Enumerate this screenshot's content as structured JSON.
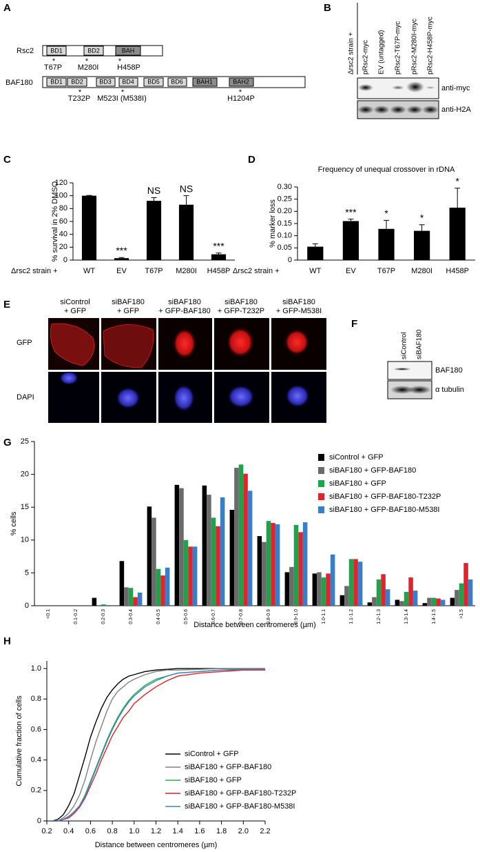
{
  "panel_labels": [
    "A",
    "B",
    "C",
    "D",
    "E",
    "F",
    "G",
    "H"
  ],
  "panel_a": {
    "marker": "*",
    "proteins": [
      {
        "name": "Rsc2",
        "domains": [
          "BD1",
          "BD2",
          "BAH"
        ],
        "mutations": [
          "T67P",
          "M280I",
          "H458P"
        ]
      },
      {
        "name": "BAF180",
        "domains": [
          "BD1",
          "BD2",
          "BD3",
          "BD4",
          "BD5",
          "BD6",
          "BAH1",
          "BAH2"
        ],
        "mutations": [
          "T232P",
          "M523I (M538I)",
          "H1204P"
        ]
      }
    ]
  },
  "panel_b": {
    "strain_label": "Δrsc2 strain +",
    "lanes": [
      "pRsc2-myc",
      "EV (untagged)",
      "pRsc2-T67P-myc",
      "pRsc2-M280I-myc",
      "pRsc2-H458P-myc"
    ],
    "rows": [
      "anti-myc",
      "anti-H2A"
    ]
  },
  "panel_e": {
    "columns": [
      [
        "siControl",
        "+ GFP"
      ],
      [
        "siBAF180",
        "+ GFP"
      ],
      [
        "siBAF180",
        "+ GFP-BAF180"
      ],
      [
        "siBAF180",
        "+ GFP-T232P"
      ],
      [
        "siBAF180",
        "+ GFP-M538I"
      ]
    ],
    "rows": [
      "GFP",
      "DAPI"
    ]
  },
  "panel_f": {
    "lanes": [
      "siControl",
      "siBAF180"
    ],
    "rows": [
      "BAF180",
      "α tubulin"
    ]
  },
  "chart_data": [
    {
      "type": "bar",
      "y_label": "% survival in 2% DMSO",
      "x_prefix": "Δrsc2 strain +",
      "categories": [
        "WT",
        "EV",
        "T67P",
        "M280I",
        "H458P"
      ],
      "values": [
        100,
        3,
        92,
        86,
        9
      ],
      "errors": [
        0.5,
        1,
        5,
        14,
        2
      ],
      "annotations": [
        null,
        "***",
        "NS",
        "NS",
        "***"
      ],
      "color": "#000000",
      "ylim": [
        0,
        120
      ],
      "yticks": [
        0,
        20,
        40,
        60,
        80,
        100,
        120
      ]
    },
    {
      "type": "bar",
      "title": "Frequency of unequal crossover in rDNA",
      "y_label": "% marker loss",
      "x_prefix": "Δrsc2 strain +",
      "categories": [
        "WT",
        "EV",
        "T67P",
        "M280I",
        "H458P"
      ],
      "values": [
        0.055,
        0.16,
        0.128,
        0.12,
        0.215
      ],
      "errors": [
        0.012,
        0.008,
        0.035,
        0.025,
        0.08
      ],
      "annotations": [
        null,
        "***",
        "*",
        "*",
        "*"
      ],
      "color": "#000000",
      "ylim": [
        0,
        0.3
      ],
      "yticks": [
        0,
        0.05,
        {
          "value": 0.1,
          "label": "0.10"
        },
        0.15,
        {
          "value": 0.2,
          "label": "0.20"
        },
        0.25,
        {
          "value": 0.3,
          "label": "0.30"
        }
      ]
    },
    {
      "type": "grouped_bar",
      "y_label": "% cells",
      "x_label": "Distance between centromeres (µm)",
      "categories": [
        "<0.1",
        "0.1-0.2",
        "0.2-0.3",
        "0.3-0.4",
        "0.4-0.5",
        "0.5-0.6",
        "0.6-0.7",
        "0.7-0.8",
        "0.8-0.9",
        "0.9-1.0",
        "1.0-1.1",
        "1.1-1.2",
        "1.2-1.3",
        "1.3-1.4",
        "1.4-1.5",
        ">1.5"
      ],
      "series": [
        {
          "name": "siControl + GFP",
          "color": "#000000",
          "values": [
            0,
            0,
            1.2,
            6.8,
            15.1,
            18.4,
            18.3,
            14.6,
            10.6,
            5.1,
            4.9,
            1.6,
            0.5,
            0.9,
            0.4,
            1.2
          ]
        },
        {
          "name": "siBAF180 + GFP-BAF180",
          "color": "#6b6b6b",
          "values": [
            0,
            0,
            0,
            2.8,
            13.4,
            17.9,
            16.9,
            21.0,
            9.7,
            5.9,
            5.1,
            3.0,
            1.3,
            0.7,
            1.2,
            2.4
          ]
        },
        {
          "name": "siBAF180 + GFP",
          "color": "#1fa24a",
          "values": [
            0,
            0,
            0.2,
            2.7,
            5.6,
            10.0,
            13.4,
            21.5,
            12.9,
            12.3,
            4.3,
            7.1,
            4.0,
            2.1,
            1.2,
            3.4
          ]
        },
        {
          "name": "siBAF180 + GFP-BAF180-T232P",
          "color": "#e3232b",
          "values": [
            0,
            0,
            0,
            1.3,
            4.6,
            9.0,
            12.1,
            20.1,
            12.6,
            11.2,
            4.9,
            7.1,
            4.8,
            4.3,
            1.1,
            6.5
          ]
        },
        {
          "name": "siBAF180 + GFP-BAF180-M538I",
          "color": "#3a7dc9",
          "values": [
            0,
            0,
            0,
            2.0,
            5.8,
            9.0,
            16.5,
            17.5,
            12.4,
            12.7,
            7.8,
            6.7,
            2.5,
            2.3,
            0.9,
            4.0
          ]
        }
      ],
      "ylim": [
        0,
        25
      ],
      "yticks": [
        0,
        5,
        10,
        15,
        20,
        25
      ]
    },
    {
      "type": "line",
      "y_label": "Cumulative fraction of cells",
      "x_label": "Distance between centromeres (µm)",
      "x": [
        0.25,
        0.3,
        0.35,
        0.4,
        0.45,
        0.5,
        0.55,
        0.6,
        0.65,
        0.7,
        0.75,
        0.8,
        0.85,
        0.9,
        0.95,
        1.0,
        1.1,
        1.2,
        1.3,
        1.4,
        1.6,
        1.8,
        2.0,
        2.2
      ],
      "series": [
        {
          "name": "siControl + GFP",
          "color": "#000000",
          "values": [
            0,
            0.01,
            0.04,
            0.1,
            0.18,
            0.3,
            0.42,
            0.55,
            0.65,
            0.74,
            0.81,
            0.86,
            0.9,
            0.93,
            0.95,
            0.96,
            0.98,
            0.99,
            0.995,
            1,
            1,
            1,
            1,
            1
          ]
        },
        {
          "name": "siBAF180 + GFP-BAF180",
          "color": "#808080",
          "values": [
            0,
            0,
            0.02,
            0.05,
            0.1,
            0.17,
            0.27,
            0.4,
            0.52,
            0.62,
            0.72,
            0.8,
            0.85,
            0.88,
            0.91,
            0.93,
            0.96,
            0.98,
            0.99,
            0.99,
            0.995,
            1,
            1,
            1
          ]
        },
        {
          "name": "siBAF180 + GFP",
          "color": "#22b14c",
          "values": [
            0,
            0,
            0.01,
            0.03,
            0.06,
            0.1,
            0.17,
            0.26,
            0.35,
            0.44,
            0.53,
            0.61,
            0.68,
            0.74,
            0.79,
            0.83,
            0.89,
            0.93,
            0.95,
            0.97,
            0.98,
            0.99,
            0.99,
            0.99
          ]
        },
        {
          "name": "siBAF180 + GFP-BAF180-T232P",
          "color": "#ed1c24",
          "values": [
            0,
            0,
            0.01,
            0.02,
            0.05,
            0.09,
            0.15,
            0.23,
            0.31,
            0.4,
            0.48,
            0.56,
            0.62,
            0.68,
            0.72,
            0.77,
            0.83,
            0.88,
            0.92,
            0.95,
            0.97,
            0.98,
            0.99,
            0.99
          ]
        },
        {
          "name": "siBAF180 + GFP-BAF180-M538I",
          "color": "#3b82c4",
          "values": [
            0,
            0,
            0.01,
            0.03,
            0.06,
            0.1,
            0.16,
            0.25,
            0.34,
            0.43,
            0.52,
            0.6,
            0.67,
            0.73,
            0.78,
            0.82,
            0.88,
            0.92,
            0.95,
            0.97,
            0.98,
            0.99,
            0.995,
            0.995
          ]
        }
      ],
      "xlim": [
        0.2,
        2.2
      ],
      "xticks": [
        0.2,
        0.4,
        0.6,
        0.8,
        {
          "value": 1,
          "label": "1.0"
        },
        1.2,
        1.4,
        1.6,
        1.8,
        {
          "value": 2,
          "label": "2.0"
        },
        2.2
      ],
      "ylim": [
        0,
        1.05
      ],
      "yticks": [
        0,
        0.2,
        0.4,
        0.6,
        0.8,
        {
          "value": 1,
          "label": "1.0"
        }
      ]
    }
  ]
}
